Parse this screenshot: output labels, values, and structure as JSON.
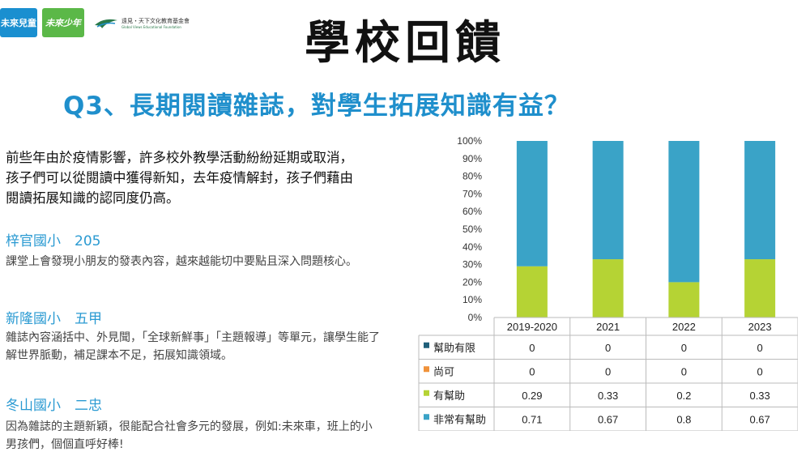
{
  "logos": {
    "logo1_text": "未來兒童",
    "logo2_text": "未來少年",
    "logo3_cn": "遠見・天下文化教育基金會",
    "logo3_en": "Global Views Educational Foundation"
  },
  "title": "學校回饋",
  "question": "Q3、長期閱讀雜誌，對學生拓展知識有益？",
  "intro": "前些年由於疫情影響，許多校外教學活動紛紛延期或取消，孩子們可以從閱讀中獲得新知，去年疫情解封，孩子們藉由閱讀拓展知識的認同度仍高。",
  "feedback": [
    {
      "school": "梓官國小　205",
      "text": "課堂上會發現小朋友的發表內容，越來越能切中要點且深入問題核心。"
    },
    {
      "school": "新隆國小　五甲",
      "text": "雜誌內容涵括中、外見聞，「全球新鮮事」「主題報導」等單元，讓學生能了解世界脈動，補足課本不足，拓展知識領域。"
    },
    {
      "school": "冬山國小　二忠",
      "text": "因為雜誌的主題新穎，很能配合社會多元的發展，例如:未來車，班上的小男孩們，個個直呼好棒!"
    }
  ],
  "chart_data": {
    "type": "bar",
    "stacked": true,
    "categories": [
      "2019-2020",
      "2021",
      "2022",
      "2023"
    ],
    "yticks": [
      "0%",
      "10%",
      "20%",
      "30%",
      "40%",
      "50%",
      "60%",
      "70%",
      "80%",
      "90%",
      "100%"
    ],
    "ylim": [
      0,
      1
    ],
    "legend_placement": "data table below chart",
    "series": [
      {
        "name": "幫助有限",
        "values": [
          0,
          0,
          0,
          0
        ],
        "color": "#1f5f7a"
      },
      {
        "name": "尚可",
        "values": [
          0,
          0,
          0,
          0
        ],
        "color": "#f0923a"
      },
      {
        "name": "有幫助",
        "values": [
          0.29,
          0.33,
          0.2,
          0.33
        ],
        "color": "#b5d334"
      },
      {
        "name": "非常有幫助",
        "values": [
          0.71,
          0.67,
          0.8,
          0.67
        ],
        "color": "#3aa3c7"
      }
    ],
    "table_values": [
      [
        "0",
        "0",
        "0",
        "0"
      ],
      [
        "0",
        "0",
        "0",
        "0"
      ],
      [
        "0.29",
        "0.33",
        "0.2",
        "0.33"
      ],
      [
        "0.71",
        "0.67",
        "0.8",
        "0.67"
      ]
    ]
  }
}
